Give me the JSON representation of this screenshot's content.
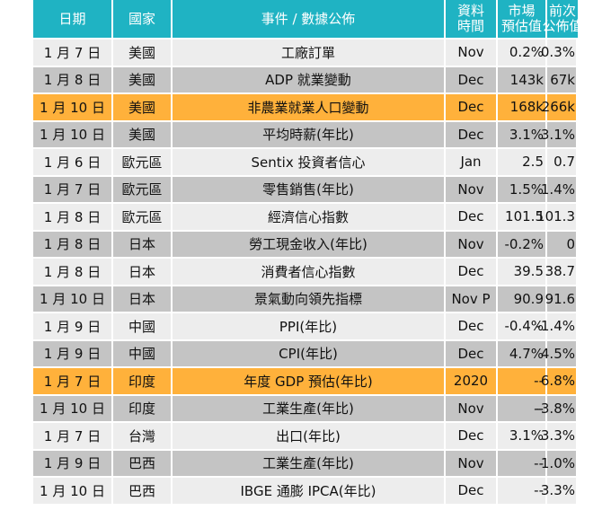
{
  "headers": {
    "date": "日期",
    "country": "國家",
    "event": "事件 / 數據公佈",
    "period_line1": "資料",
    "period_line2": "時間",
    "forecast_line1": "市場",
    "forecast_line2": "預估值",
    "previous_line1": "前次",
    "previous_line2": "公佈值"
  },
  "rows": [
    {
      "date": "1 月 7 日",
      "country": "美國",
      "event": "工廠訂單",
      "period": "Nov",
      "forecast": "0.2%",
      "previous": "0.3%"
    },
    {
      "date": "1 月 8 日",
      "country": "美國",
      "event": "ADP  就業變動",
      "period": "Dec",
      "forecast": "143k",
      "previous": "67k"
    },
    {
      "date": "1 月 10 日",
      "country": "美國",
      "event": "非農業就業人口變動",
      "period": "Dec",
      "forecast": "168k",
      "previous": "266k"
    },
    {
      "date": "1 月 10 日",
      "country": "美國",
      "event": "平均時薪(年比)",
      "period": "Dec",
      "forecast": "3.1%",
      "previous": "3.1%"
    },
    {
      "date": "1 月 6 日",
      "country": "歐元區",
      "event": "Sentix 投資者信心",
      "period": "Jan",
      "forecast": "2.5",
      "previous": "0.7"
    },
    {
      "date": "1 月 7 日",
      "country": "歐元區",
      "event": "零售銷售(年比)",
      "period": "Nov",
      "forecast": "1.5%",
      "previous": "1.4%"
    },
    {
      "date": "1 月 8 日",
      "country": "歐元區",
      "event": "經濟信心指數",
      "period": "Dec",
      "forecast": "101.5",
      "previous": "101.3"
    },
    {
      "date": "1 月 8 日",
      "country": "日本",
      "event": "勞工現金收入(年比)",
      "period": "Nov",
      "forecast": "-0.2%",
      "previous": "0"
    },
    {
      "date": "1 月 8 日",
      "country": "日本",
      "event": "消費者信心指數",
      "period": "Dec",
      "forecast": "39.5",
      "previous": "38.7"
    },
    {
      "date": "1 月 10 日",
      "country": "日本",
      "event": "景氣動向領先指標",
      "period": "Nov P",
      "forecast": "90.9",
      "previous": "91.6"
    },
    {
      "date": "1 月 9 日",
      "country": "中國",
      "event": "PPI(年比)",
      "period": "Dec",
      "forecast": "-0.4%",
      "previous": "-1.4%"
    },
    {
      "date": "1 月 9 日",
      "country": "中國",
      "event": "CPI(年比)",
      "period": "Dec",
      "forecast": "4.7%",
      "previous": "4.5%"
    },
    {
      "date": "1 月 7 日",
      "country": "印度",
      "event": "年度 GDP 預估(年比)",
      "period": "2020",
      "forecast": "--",
      "previous": "6.8%"
    },
    {
      "date": "1 月 10 日",
      "country": "印度",
      "event": "工業生產(年比)",
      "period": "Nov",
      "forecast": "--",
      "previous": "-3.8%"
    },
    {
      "date": "1 月 7 日",
      "country": "台灣",
      "event": "出口(年比)",
      "period": "Dec",
      "forecast": "3.1%",
      "previous": "3.3%"
    },
    {
      "date": "1 月 9 日",
      "country": "巴西",
      "event": "工業生產(年比)",
      "period": "Nov",
      "forecast": "--",
      "previous": "1.0%"
    },
    {
      "date": "1 月 10 日",
      "country": "巴西",
      "event": "IBGE 通膨 IPCA(年比)",
      "period": "Dec",
      "forecast": "--",
      "previous": "3.3%"
    }
  ],
  "colors": {
    "header": "#1fb3c3",
    "row_light": "#ededed",
    "row_dark": "#c4c4c4",
    "highlight": "#ffb13b"
  }
}
